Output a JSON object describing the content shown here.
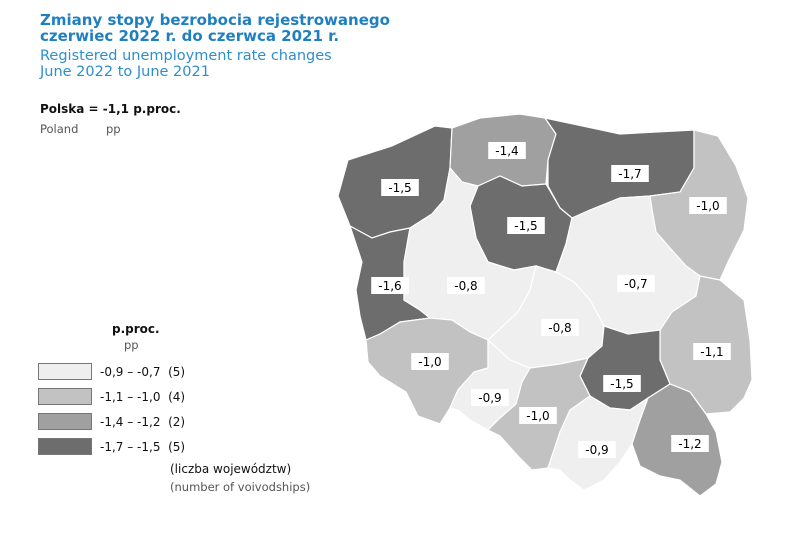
{
  "title": {
    "pl_line1": "Zmiany stopy bezrobocia rejestrowanego",
    "pl_line2": "czerwiec 2022 r. do czerwca 2021 r.",
    "en_line1": "Registered unemployment rate changes",
    "en_line2": "June 2022 to June 2021"
  },
  "national": {
    "pl": "Polska = -1,1 p.proc.",
    "en_country": "Poland",
    "en_unit": "pp"
  },
  "legend": {
    "unit_pl": "p.proc.",
    "unit_en": "pp",
    "classes": [
      {
        "label": "-0,9 – -0,7",
        "count": "(5)",
        "color": "#efefef"
      },
      {
        "label": "-1,1 – -1,0",
        "count": "(4)",
        "color": "#c2c2c2"
      },
      {
        "label": "-1,4 – -1,2",
        "count": "(2)",
        "color": "#a0a0a0"
      },
      {
        "label": "-1,7 – -1,5",
        "count": "(5)",
        "color": "#6d6d6d"
      }
    ],
    "note_pl": "(liczba województw)",
    "note_en": "(number of voivodships)"
  },
  "regions": [
    {
      "id": "zachodniopomorskie",
      "value": "-1,5",
      "class": 3
    },
    {
      "id": "pomorskie",
      "value": "-1,4",
      "class": 2
    },
    {
      "id": "warminsko-mazurskie",
      "value": "-1,7",
      "class": 3
    },
    {
      "id": "podlaskie",
      "value": "-1,0",
      "class": 1
    },
    {
      "id": "kujawsko-pomorskie",
      "value": "-1,5",
      "class": 3
    },
    {
      "id": "lubuskie",
      "value": "-1,6",
      "class": 3
    },
    {
      "id": "wielkopolskie",
      "value": "-0,8",
      "class": 0
    },
    {
      "id": "mazowieckie",
      "value": "-0,7",
      "class": 0
    },
    {
      "id": "lodzkie",
      "value": "-0,8",
      "class": 0
    },
    {
      "id": "lubelskie",
      "value": "-1,1",
      "class": 1
    },
    {
      "id": "dolnoslaskie",
      "value": "-1,0",
      "class": 1
    },
    {
      "id": "swietokrzyskie",
      "value": "-1,5",
      "class": 3
    },
    {
      "id": "opolskie",
      "value": "-0,9",
      "class": 0
    },
    {
      "id": "slaskie",
      "value": "-1,0",
      "class": 1
    },
    {
      "id": "malopolskie",
      "value": "-0,9",
      "class": 0
    },
    {
      "id": "podkarpackie",
      "value": "-1,2",
      "class": 2
    }
  ]
}
